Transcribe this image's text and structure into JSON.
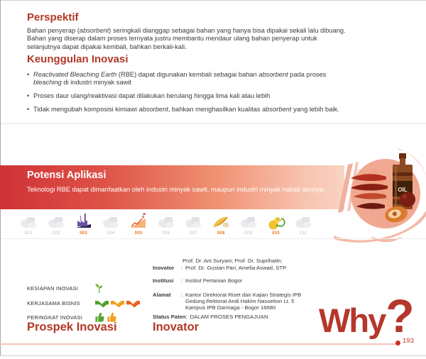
{
  "perspektif": {
    "title": "Perspektif",
    "body_rich": [
      {
        "t": "Bahan penyerap ("
      },
      {
        "t": "absorbent",
        "i": true
      },
      {
        "t": ") seringkali dianggap sebagai bahan yang hanya bisa dipakai sekali lalu dibuang. Bahan yang diserap dalam proses ternyata justru membantu mendaur ulang bahan penyerap untuk selanjutnya dapat dipakai kembali, bahkan berkali-kali."
      }
    ]
  },
  "keunggulan": {
    "title": "Keunggulan Inovasi",
    "bullets": [
      [
        {
          "t": "Reactivated Bleaching Earth",
          "i": true
        },
        {
          "t": " (RBE) dapat digunakan kembali sebagai bahan "
        },
        {
          "t": "absorbent",
          "i": true
        },
        {
          "t": " pada proses "
        },
        {
          "t": "bleaching",
          "i": true
        },
        {
          "t": " di industri minyak sawit"
        }
      ],
      [
        {
          "t": "Proses daur ulang/reaktivasi dapat dilakukan berulang hingga lima kali atau lebih"
        }
      ],
      [
        {
          "t": "Tidak mengubah komposisi kimiawi "
        },
        {
          "t": "absorbent",
          "i": true
        },
        {
          "t": ", bahkan menghasilkan kualitas "
        },
        {
          "t": "absorbent",
          "i": true
        },
        {
          "t": " yang lebih baik."
        }
      ]
    ]
  },
  "potensi": {
    "title": "Potensi Aplikasi",
    "body": "Teknologi RBE dapat dimanfaatkan oleh industri minyak sawit, maupun industri minyak nabati lainnya."
  },
  "illustration": {
    "bottle_label": "OIL"
  },
  "sector_icons": [
    {
      "number": "001",
      "name": "machinery",
      "active": false
    },
    {
      "number": "002",
      "name": "food-processing",
      "active": false
    },
    {
      "number": "003",
      "name": "factory",
      "active": true
    },
    {
      "number": "004",
      "name": "sports",
      "active": false
    },
    {
      "number": "005",
      "name": "growth-chart",
      "active": true
    },
    {
      "number": "006",
      "name": "finance",
      "active": false
    },
    {
      "number": "007",
      "name": "maritime",
      "active": false
    },
    {
      "number": "008",
      "name": "agriculture",
      "active": true
    },
    {
      "number": "009",
      "name": "fishery",
      "active": false
    },
    {
      "number": "010",
      "name": "poultry-recycle",
      "active": true
    },
    {
      "number": "011",
      "name": "marine-equipment",
      "active": false
    }
  ],
  "ratings": {
    "kesiapan": {
      "label": "KESIAPAN INOVASI",
      "icons": [
        {
          "type": "sprout",
          "color": "#5fae33"
        }
      ]
    },
    "kerjasama": {
      "label": "KERJASAMA BISNIS",
      "icons": [
        {
          "type": "handshake",
          "color": "#4da22d"
        },
        {
          "type": "handshake",
          "color": "#f0a11d"
        },
        {
          "type": "handshake",
          "color": "#e8611c"
        }
      ]
    },
    "peringkat": {
      "label": "PERINGKAT INOVASI",
      "icons": [
        {
          "type": "thumb",
          "color": "#56a82f"
        },
        {
          "type": "thumb",
          "color": "#f0a11d"
        }
      ]
    }
  },
  "prospek_heading": "Prospek Inovasi",
  "inovator_heading": "Inovator",
  "separator": ":",
  "innovation_details": {
    "inovator_label": "Inovator",
    "inovator_line1": "Prof. Dr. Ani Suryani; Prof. Dr. Suprihatin;",
    "inovator_line2": "Prof. Dr. Gustan Pari; Amelia Aswad, STP.",
    "institusi_label": "Institusi",
    "institusi_value": "Institut Pertanian Bogor",
    "alamat_label": "Alamat",
    "alamat_line1": "Kantor Direktorat Riset dan Kajian Strategis IPB",
    "alamat_line2": "Gedung Rektorat Andi Hakim Nasoetion Lt. 5",
    "alamat_line3": "Kampus IPB Darmaga - Bogor 16680",
    "status_label": "Status Paten",
    "status_value": "DALAM PROSES PENGAJUAN"
  },
  "why_text": "Why",
  "why_qmark": "?",
  "page_number": "193",
  "colors": {
    "heading_red": "#b23827",
    "banner_red": "#d03237",
    "active_number_orange": "#ee7518"
  }
}
